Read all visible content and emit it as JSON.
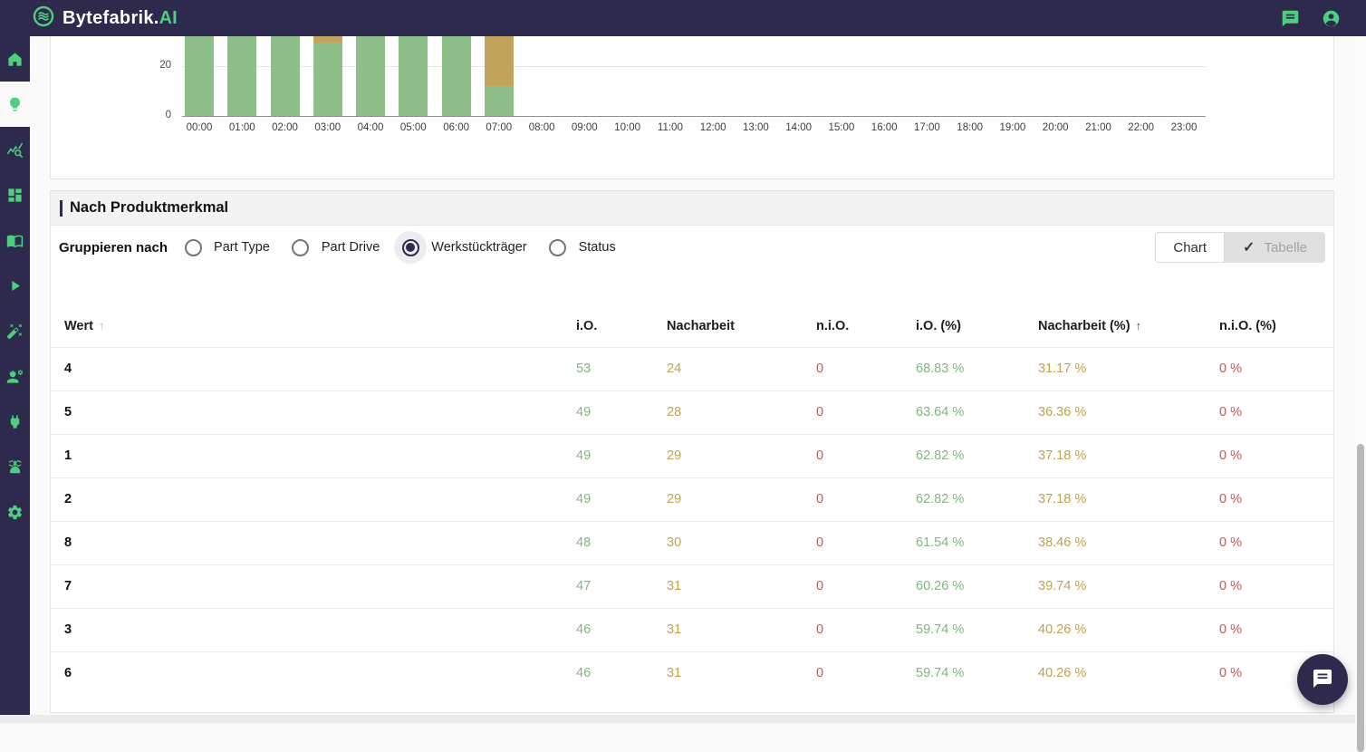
{
  "navbar": {
    "brand": "Bytefabrik.",
    "brand_accent": "AI",
    "icons": [
      {
        "name": "chat-icon"
      },
      {
        "name": "account-icon"
      }
    ]
  },
  "sidebar": {
    "items": [
      {
        "icon": "home-icon",
        "active": false
      },
      {
        "icon": "lightbulb-icon",
        "active": true
      },
      {
        "icon": "query-stats-icon",
        "active": false
      },
      {
        "icon": "dashboard-icon",
        "active": false
      },
      {
        "icon": "book-icon",
        "active": false
      },
      {
        "icon": "play-icon",
        "active": false
      },
      {
        "icon": "magic-wand-icon",
        "active": false
      },
      {
        "icon": "engineering-icon",
        "active": false
      },
      {
        "icon": "plug-icon",
        "active": false
      },
      {
        "icon": "robot-arm-icon",
        "active": false
      },
      {
        "icon": "gear-icon",
        "active": false
      }
    ]
  },
  "chart_data": {
    "type": "bar",
    "stacked": true,
    "categories": [
      "00:00",
      "01:00",
      "02:00",
      "03:00",
      "04:00",
      "05:00",
      "06:00",
      "07:00",
      "08:00",
      "09:00",
      "10:00",
      "11:00",
      "12:00",
      "13:00",
      "14:00",
      "15:00",
      "16:00",
      "17:00",
      "18:00",
      "19:00",
      "20:00",
      "21:00",
      "22:00",
      "23:00"
    ],
    "series": [
      {
        "name": "i.O.",
        "color": "#8ebf8a",
        "values": [
          33,
          33,
          33,
          29.5,
          33,
          33,
          33,
          12,
          0,
          0,
          0,
          0,
          0,
          0,
          0,
          0,
          0,
          0,
          0,
          0,
          0,
          0,
          0,
          0
        ]
      },
      {
        "name": "Nacharbeit",
        "color": "#c2a35c",
        "values": [
          0,
          0,
          0,
          3.5,
          0,
          0,
          0,
          21,
          0,
          0,
          0,
          0,
          0,
          0,
          0,
          0,
          0,
          0,
          0,
          0,
          0,
          0,
          0,
          0
        ]
      }
    ],
    "yticks": [
      0,
      20
    ],
    "ylim": [
      0,
      32
    ],
    "grid": true,
    "note": "Chart is scrolled: bar tops for 00:00-07:00 are clipped at the top of the viewport; values >= 32 are shown clipped."
  },
  "panel": {
    "title": "Nach Produktmerkmal",
    "group_by_label": "Gruppieren nach",
    "radios": [
      {
        "label": "Part Type",
        "selected": false
      },
      {
        "label": "Part Drive",
        "selected": false
      },
      {
        "label": "Werkstückträger",
        "selected": true
      },
      {
        "label": "Status",
        "selected": false
      }
    ],
    "view_toggle": [
      {
        "label": "Chart",
        "selected": false,
        "icon": null
      },
      {
        "label": "Tabelle",
        "selected": true,
        "icon": "check-icon"
      }
    ]
  },
  "table": {
    "columns": [
      {
        "label": "Wert",
        "sort_arrow": "muted"
      },
      {
        "label": "i.O.",
        "sort_arrow": null
      },
      {
        "label": "Nacharbeit",
        "sort_arrow": null
      },
      {
        "label": "n.i.O.",
        "sort_arrow": null
      },
      {
        "label": "i.O. (%)",
        "sort_arrow": null
      },
      {
        "label": "Nacharbeit (%)",
        "sort_arrow": "active"
      },
      {
        "label": "n.i.O. (%)",
        "sort_arrow": null
      }
    ],
    "rows": [
      [
        "4",
        "53",
        "24",
        "0",
        "68.83 %",
        "31.17 %",
        "0 %"
      ],
      [
        "5",
        "49",
        "28",
        "0",
        "63.64 %",
        "36.36 %",
        "0 %"
      ],
      [
        "1",
        "49",
        "29",
        "0",
        "62.82 %",
        "37.18 %",
        "0 %"
      ],
      [
        "2",
        "49",
        "29",
        "0",
        "62.82 %",
        "37.18 %",
        "0 %"
      ],
      [
        "8",
        "48",
        "30",
        "0",
        "61.54 %",
        "38.46 %",
        "0 %"
      ],
      [
        "7",
        "47",
        "31",
        "0",
        "60.26 %",
        "39.74 %",
        "0 %"
      ],
      [
        "3",
        "46",
        "31",
        "0",
        "59.74 %",
        "40.26 %",
        "0 %"
      ],
      [
        "6",
        "46",
        "31",
        "0",
        "59.74 %",
        "40.26 %",
        "0 %"
      ]
    ]
  },
  "fab": {
    "icon": "chat-icon"
  },
  "colors": {
    "navbar": "#2e2a4e",
    "accent_green": "#4ccf7e",
    "bar_green": "#8ebf8a",
    "bar_tan": "#c2a35c",
    "value_green": "#7aba7c",
    "value_gold": "#bfa24b",
    "value_red": "#c25757"
  }
}
